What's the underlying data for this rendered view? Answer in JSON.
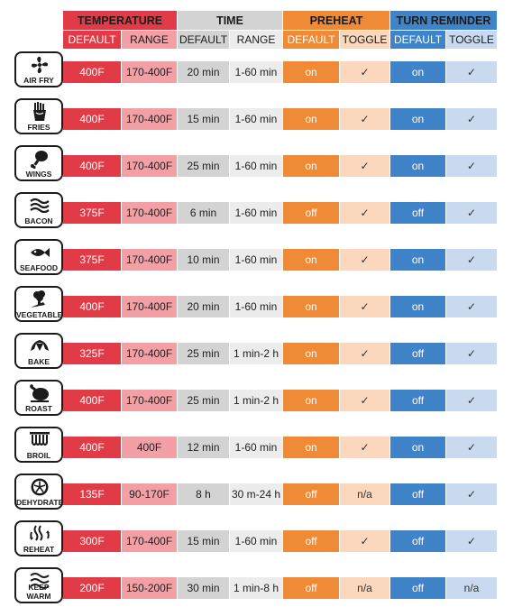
{
  "header": {
    "temperature": "TEMPERATURE",
    "time": "TIME",
    "preheat": "PREHEAT",
    "turn_reminder": "TURN REMINDER",
    "sub": [
      "DEFAULT",
      "RANGE",
      "DEFAULT",
      "RANGE",
      "DEFAULT",
      "TOGGLE",
      "DEFAULT",
      "TOGGLE"
    ]
  },
  "colors": {
    "temperature": "#e23b48",
    "temperature_light": "#f2a0a5",
    "time": "#d3d3d3",
    "time_light": "#ececec",
    "preheat": "#ef8a37",
    "preheat_light": "#fbd7bd",
    "turn_reminder": "#3f83c8",
    "turn_reminder_light": "#c9d9f0"
  },
  "rows": [
    {
      "icon": "air-fry-fan-icon",
      "label": "AIR FRY",
      "temp_default": "400F",
      "temp_range": "170-400F",
      "time_default": "20 min",
      "time_range": "1-60 min",
      "preheat_default": "on",
      "preheat_toggle": "✓",
      "turn_default": "on",
      "turn_toggle": "✓"
    },
    {
      "icon": "fries-icon",
      "label": "FRIES",
      "temp_default": "400F",
      "temp_range": "170-400F",
      "time_default": "15 min",
      "time_range": "1-60 min",
      "preheat_default": "on",
      "preheat_toggle": "✓",
      "turn_default": "on",
      "turn_toggle": "✓"
    },
    {
      "icon": "wings-icon",
      "label": "WINGS",
      "temp_default": "400F",
      "temp_range": "170-400F",
      "time_default": "25 min",
      "time_range": "1-60 min",
      "preheat_default": "on",
      "preheat_toggle": "✓",
      "turn_default": "on",
      "turn_toggle": "✓"
    },
    {
      "icon": "bacon-icon",
      "label": "BACON",
      "temp_default": "375F",
      "temp_range": "170-400F",
      "time_default": "6 min",
      "time_range": "1-60 min",
      "preheat_default": "off",
      "preheat_toggle": "✓",
      "turn_default": "off",
      "turn_toggle": "✓"
    },
    {
      "icon": "fish-icon",
      "label": "SEAFOOD",
      "temp_default": "375F",
      "temp_range": "170-400F",
      "time_default": "10 min",
      "time_range": "1-60 min",
      "preheat_default": "on",
      "preheat_toggle": "✓",
      "turn_default": "on",
      "turn_toggle": "✓"
    },
    {
      "icon": "vegetables-icon",
      "label": "VEGETABLES",
      "temp_default": "400F",
      "temp_range": "170-400F",
      "time_default": "20 min",
      "time_range": "1-60 min",
      "preheat_default": "on",
      "preheat_toggle": "✓",
      "turn_default": "on",
      "turn_toggle": "✓"
    },
    {
      "icon": "croissant-icon",
      "label": "BAKE",
      "temp_default": "325F",
      "temp_range": "170-400F",
      "time_default": "25 min",
      "time_range": "1 min-2 h",
      "preheat_default": "on",
      "preheat_toggle": "✓",
      "turn_default": "off",
      "turn_toggle": "✓"
    },
    {
      "icon": "roast-chicken-icon",
      "label": "ROAST",
      "temp_default": "400F",
      "temp_range": "170-400F",
      "time_default": "25 min",
      "time_range": "1 min-2 h",
      "preheat_default": "on",
      "preheat_toggle": "✓",
      "turn_default": "off",
      "turn_toggle": "✓"
    },
    {
      "icon": "broil-coil-icon",
      "label": "BROIL",
      "temp_default": "400F",
      "temp_range": "400F",
      "time_default": "12 min",
      "time_range": "1-60 min",
      "preheat_default": "on",
      "preheat_toggle": "✓",
      "turn_default": "on",
      "turn_toggle": "✓"
    },
    {
      "icon": "dehydrate-slice-icon",
      "label": "DEHYDRATE",
      "temp_default": "135F",
      "temp_range": "90-170F",
      "time_default": "8 h",
      "time_range": "30 m-24 h",
      "preheat_default": "off",
      "preheat_toggle": "n/a",
      "turn_default": "off",
      "turn_toggle": "✓"
    },
    {
      "icon": "reheat-icon",
      "label": "REHEAT",
      "temp_default": "300F",
      "temp_range": "170-400F",
      "time_default": "15 min",
      "time_range": "1-60 min",
      "preheat_default": "off",
      "preheat_toggle": "✓",
      "turn_default": "off",
      "turn_toggle": "✓"
    },
    {
      "icon": "keep-warm-icon",
      "label": "KEEP WARM",
      "temp_default": "200F",
      "temp_range": "150-200F",
      "time_default": "30 min",
      "time_range": "1 min-8 h",
      "preheat_default": "off",
      "preheat_toggle": "n/a",
      "turn_default": "off",
      "turn_toggle": "n/a"
    }
  ]
}
